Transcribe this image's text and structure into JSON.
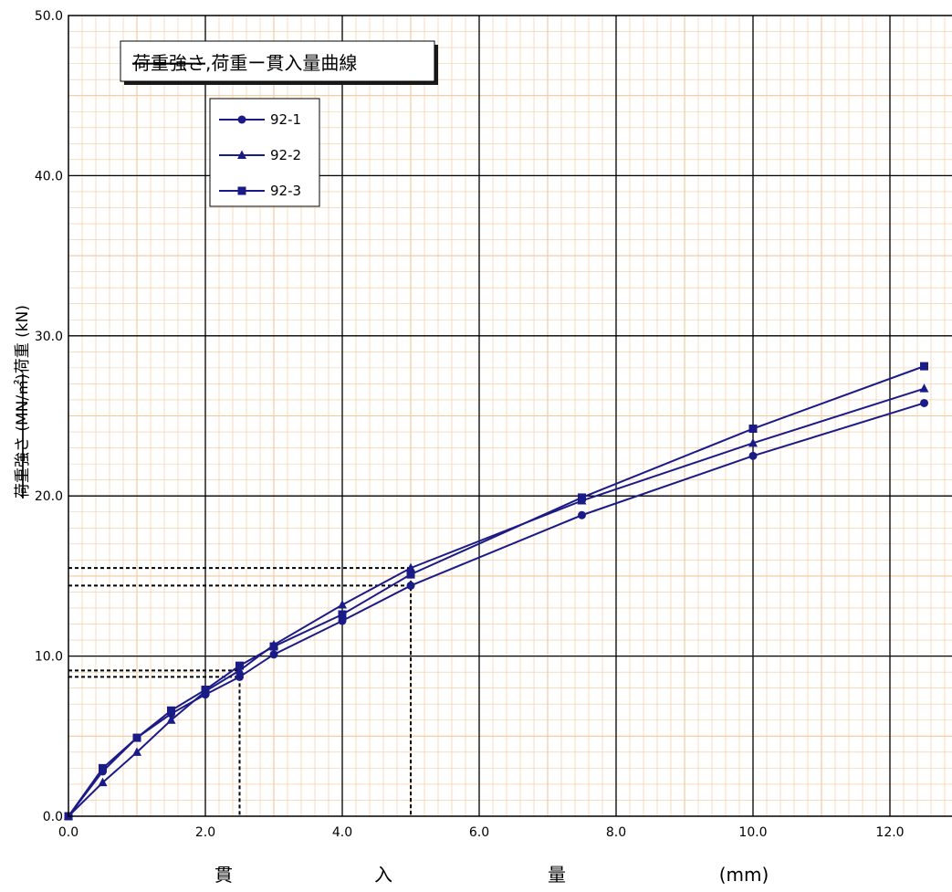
{
  "chart_data": {
    "type": "line",
    "title": {
      "struck": "荷重強さ",
      "rest": ",荷重ー貫入量曲線"
    },
    "xlabel": [
      "貫",
      "入",
      "量",
      "(mm)"
    ],
    "ylabel": {
      "struck": "荷重強さ (MN/㎡)",
      "rest": "荷重 (kN)"
    },
    "xlim": [
      0,
      13
    ],
    "ylim": [
      0,
      50
    ],
    "xticks": [
      "0.0",
      "2.0",
      "4.0",
      "6.0",
      "8.0",
      "10.0",
      "12.0"
    ],
    "yticks": [
      "0.0",
      "10.0",
      "20.0",
      "30.0",
      "40.0",
      "50.0"
    ],
    "grid": true,
    "legend_position": "top-left",
    "series": [
      {
        "name": "92-1",
        "marker": "circle",
        "x": [
          0,
          0.5,
          1.0,
          1.5,
          2.0,
          2.5,
          3.0,
          4.0,
          5.0,
          7.5,
          10.0,
          12.5
        ],
        "y": [
          0,
          2.8,
          4.9,
          6.4,
          7.6,
          8.7,
          10.1,
          12.2,
          14.4,
          18.8,
          22.5,
          25.8
        ]
      },
      {
        "name": "92-2",
        "marker": "triangle",
        "x": [
          0,
          0.5,
          1.0,
          1.5,
          2.0,
          2.5,
          3.0,
          4.0,
          5.0,
          7.5,
          10.0,
          12.5
        ],
        "y": [
          0,
          2.1,
          4.0,
          6.0,
          7.8,
          9.1,
          10.7,
          13.2,
          15.5,
          19.7,
          23.3,
          26.7
        ]
      },
      {
        "name": "92-3",
        "marker": "square",
        "x": [
          0,
          0.5,
          1.0,
          1.5,
          2.0,
          2.5,
          3.0,
          4.0,
          5.0,
          7.5,
          10.0,
          12.5
        ],
        "y": [
          0,
          3.0,
          4.9,
          6.6,
          7.9,
          9.4,
          10.6,
          12.6,
          15.1,
          19.9,
          24.2,
          28.1
        ]
      }
    ],
    "reference_lines": [
      {
        "x": 2.5,
        "y": [
          8.7,
          9.1
        ]
      },
      {
        "x": 5.0,
        "y": [
          14.4,
          15.5
        ]
      }
    ],
    "colors": {
      "series": "#1b1b87",
      "major_grid": "#000000",
      "minor_grid": "#f2c79a",
      "reference": "#000000"
    }
  }
}
